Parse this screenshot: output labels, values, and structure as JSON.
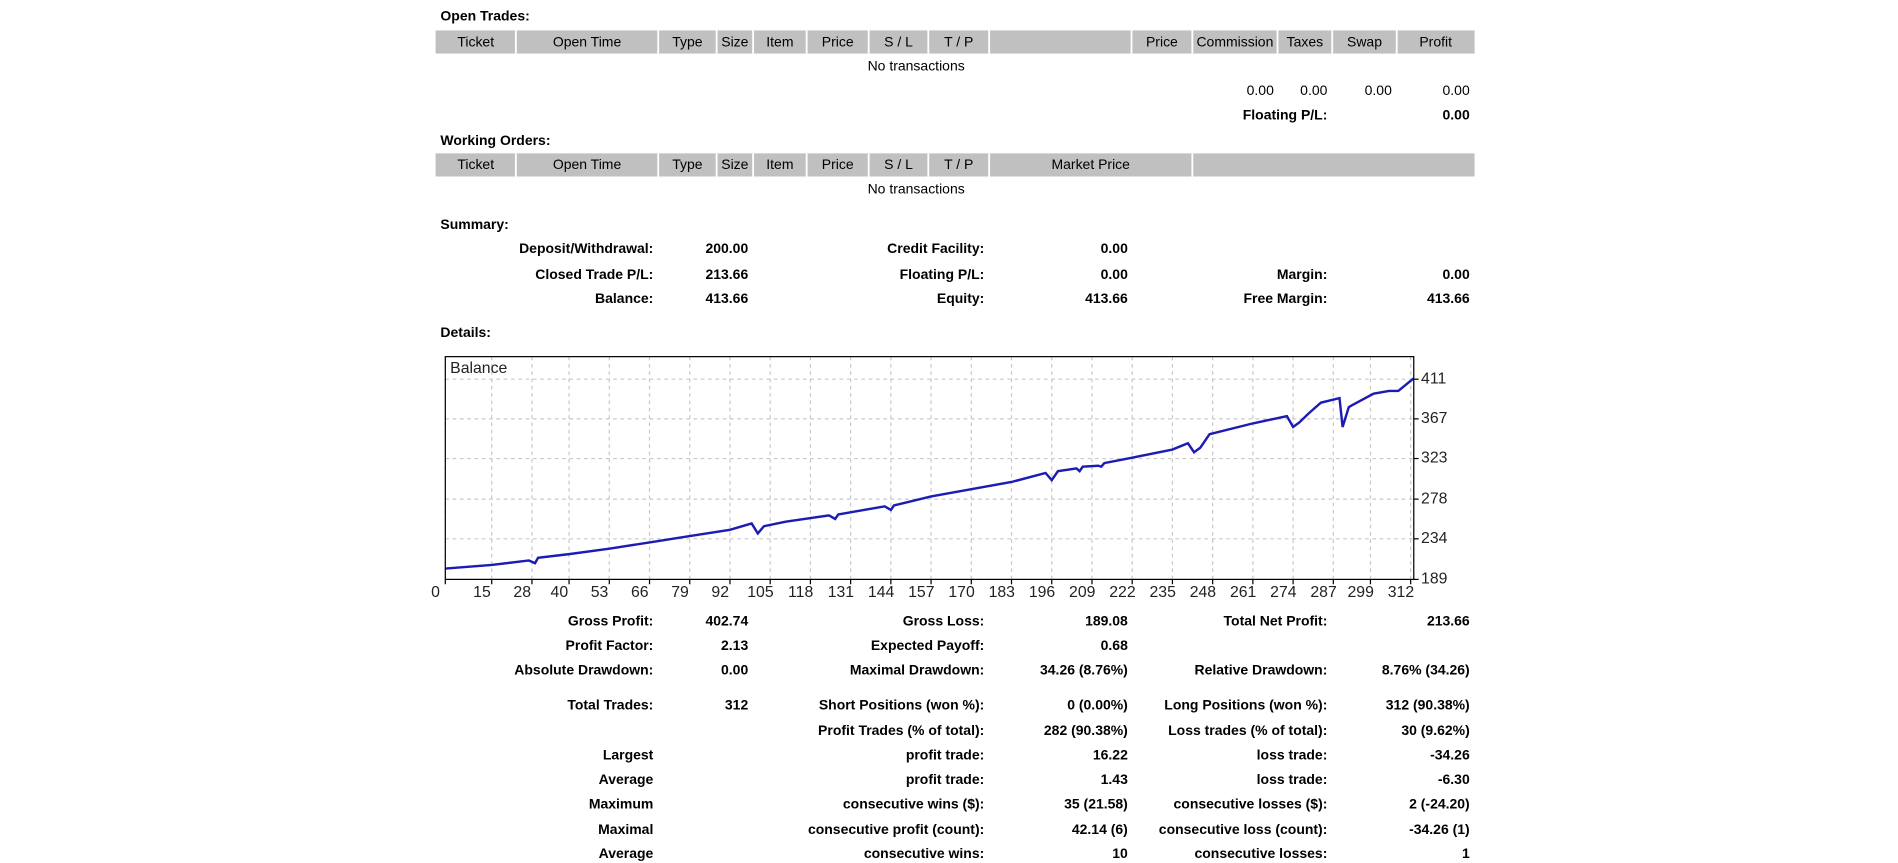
{
  "open_trades": {
    "title": "Open Trades:",
    "columns": [
      "Ticket",
      "Open Time",
      "Type",
      "Size",
      "Item",
      "Price",
      "S / L",
      "T / P",
      "Price",
      "Commission",
      "Taxes",
      "Swap",
      "Profit"
    ],
    "empty": "No transactions",
    "totals": [
      "0.00",
      "0.00",
      "0.00",
      "0.00"
    ],
    "floating_label": "Floating P/L:",
    "floating_value": "0.00"
  },
  "working_orders": {
    "title": "Working Orders:",
    "columns": [
      "Ticket",
      "Open Time",
      "Type",
      "Size",
      "Item",
      "Price",
      "S / L",
      "T / P",
      "Market Price"
    ],
    "empty": "No transactions"
  },
  "summary": {
    "title": "Summary:",
    "rows": [
      [
        "Deposit/Withdrawal:",
        "200.00",
        "Credit Facility:",
        "0.00",
        null,
        null
      ],
      [
        "Closed Trade P/L:",
        "213.66",
        "Floating P/L:",
        "0.00",
        "Margin:",
        "0.00"
      ],
      [
        "Balance:",
        "413.66",
        "Equity:",
        "413.66",
        "Free Margin:",
        "413.66"
      ]
    ]
  },
  "details": {
    "title": "Details:",
    "chart": {
      "type": "line",
      "title": "Balance",
      "color": "#1c1cb4",
      "grid": true,
      "x": [
        0,
        15,
        27,
        29,
        30,
        40,
        53,
        66,
        79,
        92,
        99,
        101,
        103,
        110,
        124,
        126,
        127,
        142,
        144,
        145,
        157,
        170,
        183,
        194,
        196,
        198,
        204,
        205,
        206,
        211,
        212,
        213,
        222,
        235,
        240,
        242,
        244,
        247,
        261,
        272,
        274,
        276,
        279,
        283,
        289,
        290,
        292,
        293,
        300,
        305,
        308,
        313
      ],
      "values": [
        201,
        205,
        210,
        207,
        213,
        217,
        223,
        230,
        237,
        244,
        251,
        240,
        248,
        253,
        260,
        256,
        261,
        270,
        266,
        271,
        281,
        289,
        297,
        307,
        299,
        309,
        312,
        309,
        314,
        315,
        314,
        318,
        324,
        333,
        340,
        330,
        335,
        350,
        362,
        370,
        358,
        363,
        373,
        385,
        390,
        358,
        380,
        382,
        395,
        398,
        398,
        412
      ],
      "xlim": [
        0,
        313
      ],
      "ylim": [
        189,
        436
      ],
      "xticks": [
        0,
        15,
        28,
        40,
        53,
        66,
        79,
        92,
        105,
        118,
        131,
        144,
        157,
        170,
        183,
        196,
        209,
        222,
        235,
        248,
        261,
        274,
        287,
        299,
        312
      ],
      "yticks": [
        189,
        234,
        278,
        323,
        367,
        411
      ]
    },
    "rows": [
      [
        "Gross Profit:",
        "402.74",
        "Gross Loss:",
        "189.08",
        "Total Net Profit:",
        "213.66"
      ],
      [
        "Profit Factor:",
        "2.13",
        "Expected Payoff:",
        "0.68",
        null,
        null
      ],
      [
        "Absolute Drawdown:",
        "0.00",
        "Maximal Drawdown:",
        "34.26 (8.76%)",
        "Relative Drawdown:",
        "8.76% (34.26)"
      ],
      [
        "Total Trades:",
        "312",
        "Short Positions (won %):",
        "0 (0.00%)",
        "Long Positions (won %):",
        "312 (90.38%)"
      ],
      [
        null,
        null,
        "Profit Trades (% of total):",
        "282 (90.38%)",
        "Loss trades (% of total):",
        "30 (9.62%)"
      ],
      [
        "Largest",
        null,
        "profit trade:",
        "16.22",
        "loss trade:",
        "-34.26"
      ],
      [
        "Average",
        null,
        "profit trade:",
        "1.43",
        "loss trade:",
        "-6.30"
      ],
      [
        "Maximum",
        null,
        "consecutive wins ($):",
        "35 (21.58)",
        "consecutive losses ($):",
        "2 (-24.20)"
      ],
      [
        "Maximal",
        null,
        "consecutive profit (count):",
        "42.14 (6)",
        "consecutive loss (count):",
        "-34.26 (1)"
      ],
      [
        "Average",
        null,
        "consecutive wins:",
        "10",
        "consecutive losses:",
        "1"
      ]
    ]
  }
}
